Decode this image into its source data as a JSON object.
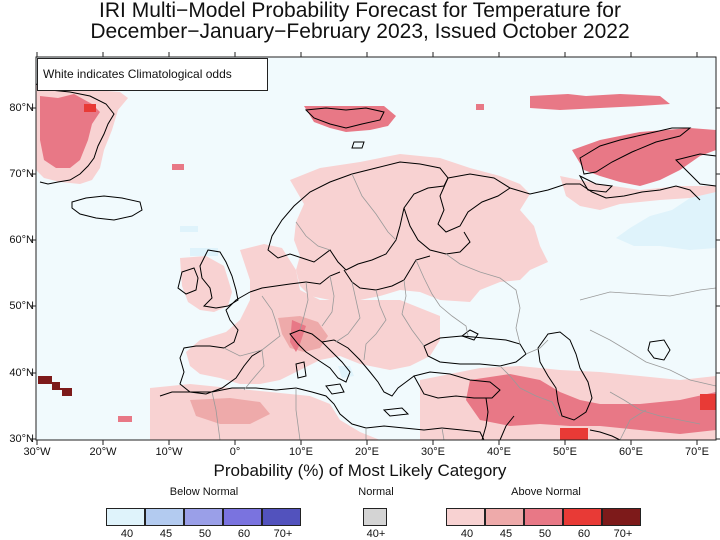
{
  "title": {
    "line1": "IRI Multi−Model Probability Forecast for Temperature for",
    "line2": "December−January−February 2023, Issued October 2022"
  },
  "note": "White indicates Climatological odds",
  "lat_labels": [
    "80°N",
    "70°N",
    "60°N",
    "50°N",
    "40°N",
    "30°N"
  ],
  "lon_labels": [
    "30°W",
    "20°W",
    "10°W",
    "0°",
    "10°E",
    "20°E",
    "30°E",
    "40°E",
    "50°E",
    "60°E",
    "70°E"
  ],
  "legend": {
    "caption": "Probability (%) of Most Likely Category",
    "below_label": "Below Normal",
    "normal_label": "Normal",
    "above_label": "Above Normal",
    "below_ticks": [
      "40",
      "45",
      "50",
      "60",
      "70+"
    ],
    "normal_ticks": [
      "40+"
    ],
    "above_ticks": [
      "40",
      "45",
      "50",
      "60",
      "70+"
    ]
  },
  "colors": {
    "below": [
      "#dff3fb",
      "#b3cbf0",
      "#9a9fe8",
      "#7a73df",
      "#5252bd"
    ],
    "normal": "#d4d4d4",
    "above": [
      "#f8d2d2",
      "#eeaaaa",
      "#e87886",
      "#e83a36",
      "#7d1a1a"
    ],
    "ocean_background": "#f1fafd",
    "coastline": "#000000",
    "borders": "#9a9a9a"
  },
  "map_extent": {
    "lon_min": -30,
    "lon_max": 73,
    "lat_min": 30,
    "lat_max": 88
  }
}
